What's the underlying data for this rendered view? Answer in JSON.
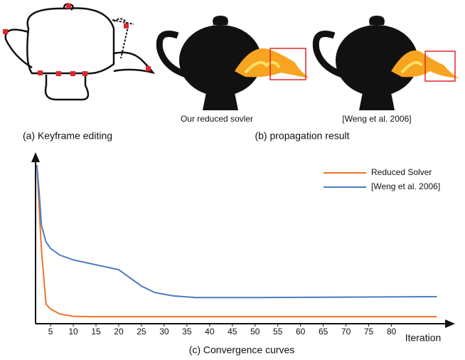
{
  "figure": {
    "panel_a": {
      "caption": "(a) Keyframe editing"
    },
    "panel_b": {
      "caption": "(b) propagation result",
      "left_label": "Our reduced sovler",
      "right_label": "[Weng et al. 2006]"
    },
    "panel_c": {
      "caption": "(c) Convergence curves"
    }
  },
  "chart_data": {
    "type": "line",
    "x_label": "Iteration",
    "x": [
      2,
      2.5,
      3,
      4,
      5,
      7,
      10,
      15,
      20,
      22,
      25,
      28,
      32,
      37,
      50,
      90
    ],
    "series": [
      {
        "name": "Reduced Solver",
        "color": "#ee7326",
        "values": [
          97,
          70,
          45,
          12,
          9,
          6,
          4.5,
          4.3,
          4.3,
          4.3,
          4.3,
          4.3,
          4.3,
          4.3,
          4.3,
          4.3
        ]
      },
      {
        "name": "[Weng et al. 2006]",
        "color": "#4a7cc1",
        "values": [
          97,
          80,
          60,
          50,
          46,
          42,
          39,
          36,
          33,
          29,
          23,
          19,
          17,
          16,
          16,
          16.5
        ]
      }
    ],
    "xlim": [
      1.7,
      94
    ],
    "ylim": [
      0,
      100
    ],
    "xticks": [
      5,
      10,
      15,
      20,
      25,
      30,
      35,
      40,
      45,
      50,
      55,
      60,
      65,
      70,
      75,
      80
    ],
    "grid": false,
    "legend": "top-right"
  }
}
